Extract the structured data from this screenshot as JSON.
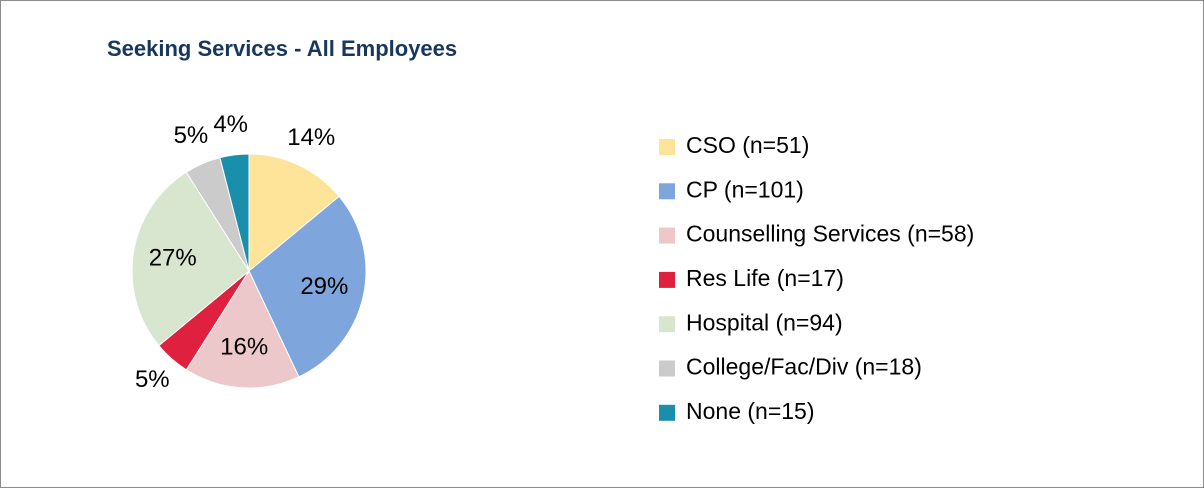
{
  "chart_data": {
    "type": "pie",
    "title": "Seeking Services - All Employees",
    "categories": [
      "CSO (n=51)",
      "CP (n=101)",
      "Counselling Services (n=58)",
      "Res Life (n=17)",
      "Hospital (n=94)",
      "College/Fac/Div (n=18)",
      "None (n=15)"
    ],
    "values": [
      14,
      29,
      16,
      5,
      27,
      5,
      4
    ],
    "value_labels": [
      "14%",
      "29%",
      "16%",
      "5%",
      "27%",
      "5%",
      "4%"
    ],
    "colors": [
      "#fde499",
      "#7ea6dc",
      "#ecc8cb",
      "#e0203f",
      "#d8e6cf",
      "#cbcbcb",
      "#1a8fac"
    ],
    "legend": "right"
  }
}
